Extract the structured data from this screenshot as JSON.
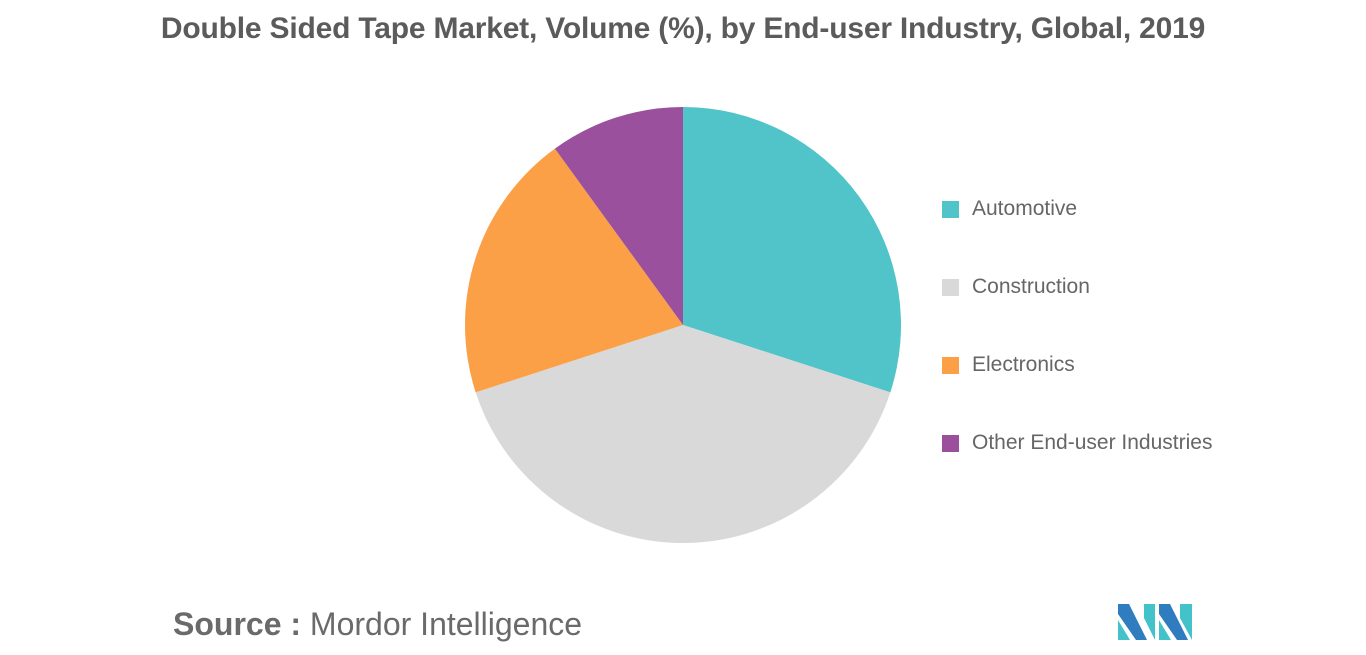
{
  "chart_data": {
    "type": "pie",
    "title": "Double Sided Tape Market, Volume (%), by End-user Industry, Global, 2019",
    "categories": [
      "Automotive",
      "Construction",
      "Electronics",
      "Other End-user Industries"
    ],
    "values": [
      30,
      40,
      20,
      10
    ],
    "colors": [
      "#51c4c9",
      "#d9d9d9",
      "#fba047",
      "#9b509e"
    ],
    "legend_position": "right"
  },
  "source": {
    "prefix": "Source :",
    "name": "Mordor Intelligence"
  },
  "logo": {
    "colors": [
      "#2f7dbf",
      "#44c2c9"
    ]
  }
}
